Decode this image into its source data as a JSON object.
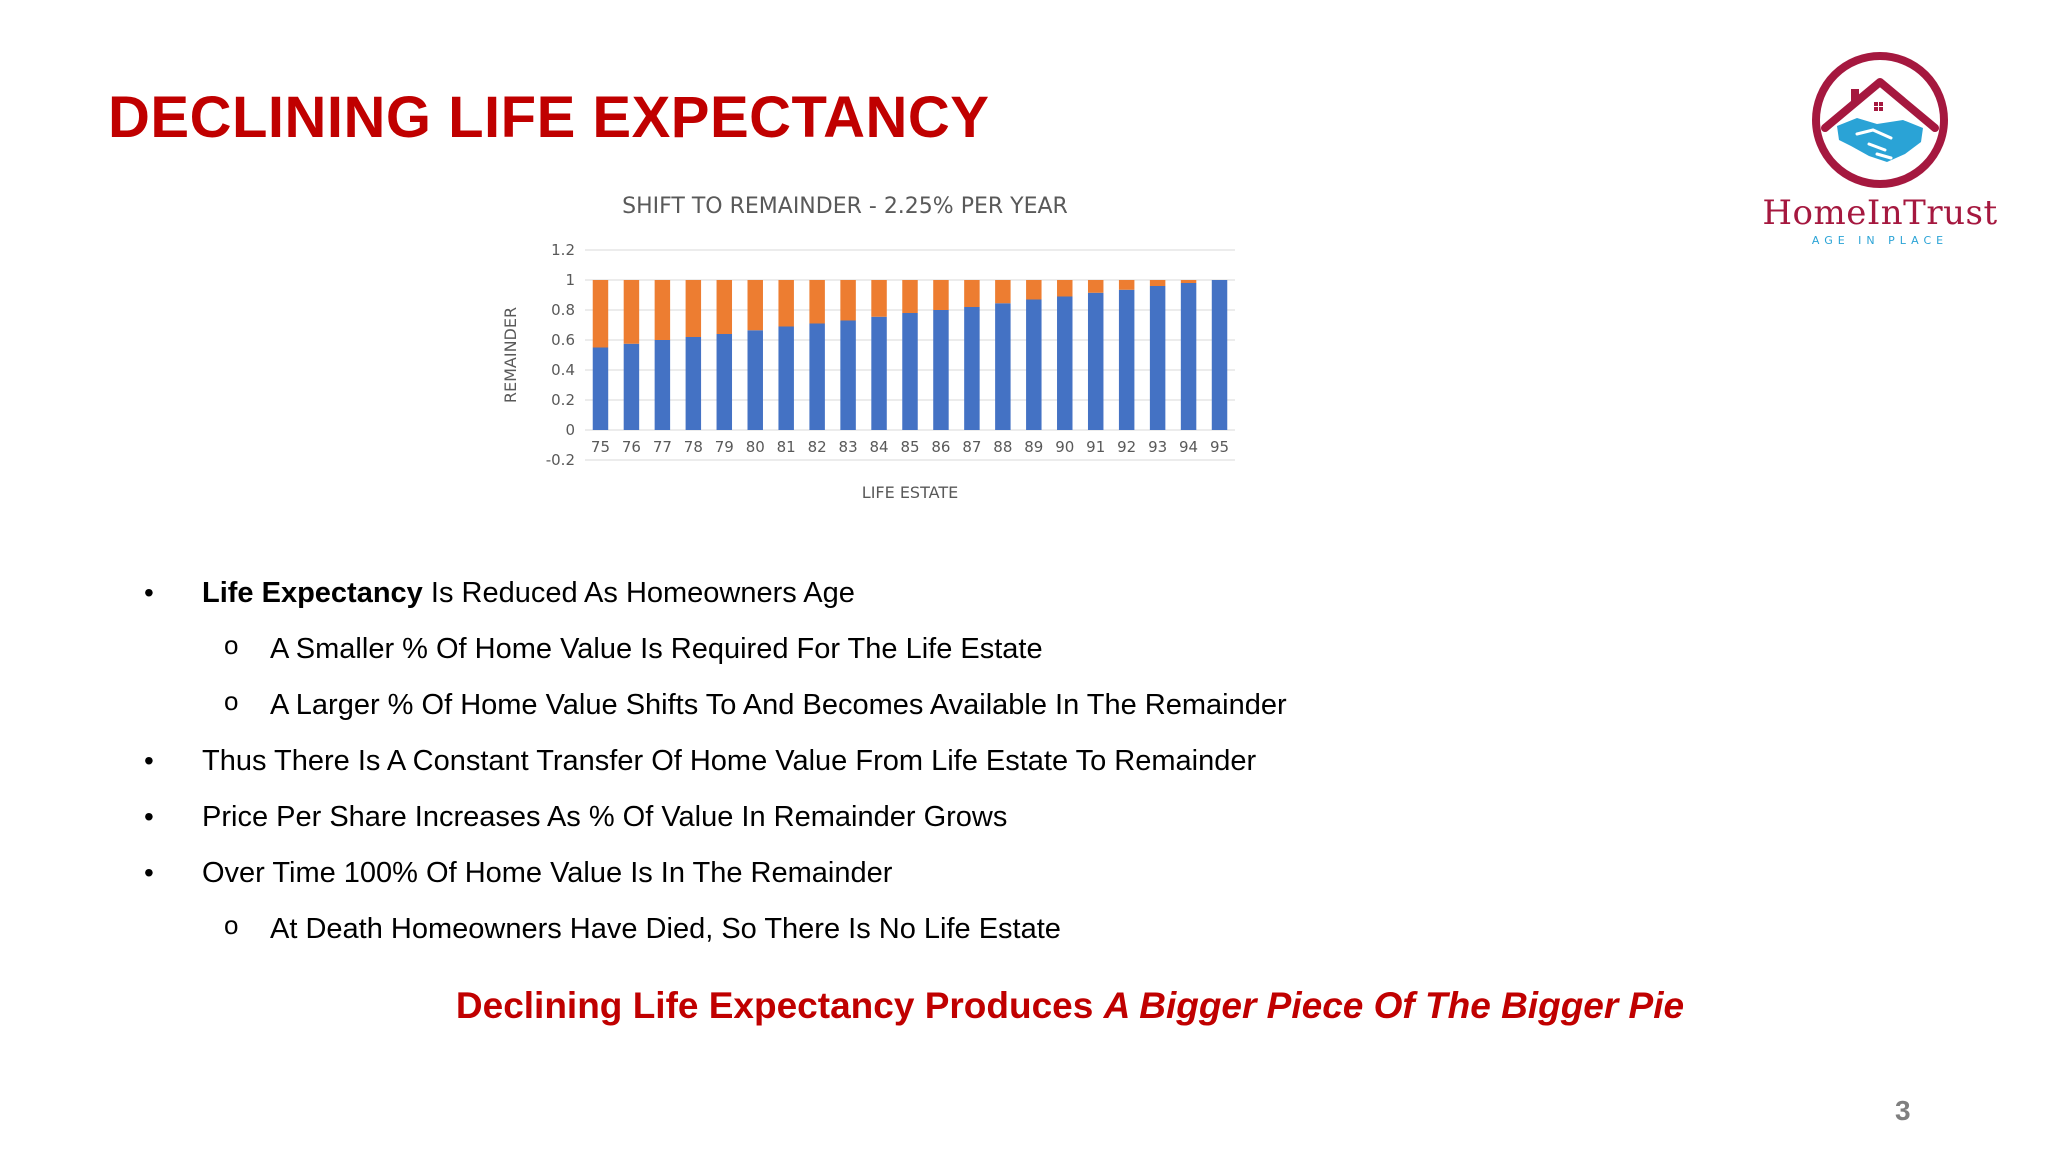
{
  "title": "DECLINING LIFE EXPECTANCY",
  "logo": {
    "name": "HomeInTrust",
    "tagline": "AGE IN PLACE",
    "ring_color": "#a5183f",
    "hands_color": "#2aa3d6"
  },
  "chart_data": {
    "type": "bar",
    "stacked": true,
    "title": "SHIFT TO REMAINDER - 2.25% PER YEAR",
    "xlabel": "LIFE ESTATE",
    "ylabel": "REMAINDER",
    "ylim": [
      -0.2,
      1.2
    ],
    "yticks": [
      "1.2",
      "1",
      "0.8",
      "0.6",
      "0.4",
      "0.2",
      "0",
      "-0.2"
    ],
    "grid": true,
    "categories": [
      "75",
      "76",
      "77",
      "78",
      "79",
      "80",
      "81",
      "82",
      "83",
      "84",
      "85",
      "86",
      "87",
      "88",
      "89",
      "90",
      "91",
      "92",
      "93",
      "94",
      "95"
    ],
    "series": [
      {
        "color": "#4472c4",
        "values": [
          0.55,
          0.575,
          0.6,
          0.62,
          0.64,
          0.665,
          0.69,
          0.71,
          0.73,
          0.755,
          0.78,
          0.8,
          0.82,
          0.845,
          0.87,
          0.89,
          0.915,
          0.935,
          0.96,
          0.98,
          1.0
        ]
      },
      {
        "color": "#ed7d31",
        "values": [
          0.45,
          0.425,
          0.4,
          0.38,
          0.36,
          0.335,
          0.31,
          0.29,
          0.27,
          0.245,
          0.22,
          0.2,
          0.18,
          0.155,
          0.13,
          0.11,
          0.085,
          0.065,
          0.04,
          0.02,
          0.0
        ]
      }
    ]
  },
  "bullets": [
    {
      "level": 0,
      "marker": "•",
      "bold": "Life Expectancy",
      "text": " Is Reduced As Homeowners Age"
    },
    {
      "level": 1,
      "marker": "o",
      "bold": "",
      "text": "A Smaller % Of Home Value Is Required For The Life Estate"
    },
    {
      "level": 1,
      "marker": "o",
      "bold": "",
      "text": "A Larger % Of Home Value Shifts To And Becomes Available In The Remainder"
    },
    {
      "level": 0,
      "marker": "•",
      "bold": "",
      "text": "Thus There Is A Constant Transfer Of Home Value From Life Estate To Remainder"
    },
    {
      "level": 0,
      "marker": "•",
      "bold": "",
      "text": "Price Per Share Increases As % Of Value In Remainder Grows"
    },
    {
      "level": 0,
      "marker": "•",
      "bold": "",
      "text": "Over Time 100% Of Home Value Is In The Remainder"
    },
    {
      "level": 1,
      "marker": "o",
      "bold": "",
      "text": "At Death Homeowners Have Died, So There Is No Life Estate"
    }
  ],
  "tagline": {
    "plain": "Declining Life Expectancy Produces ",
    "italic": "A Bigger Piece Of The Bigger Pie"
  },
  "page_number": "3"
}
